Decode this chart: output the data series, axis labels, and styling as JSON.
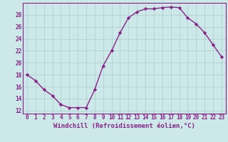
{
  "x": [
    0,
    1,
    2,
    3,
    4,
    5,
    6,
    7,
    8,
    9,
    10,
    11,
    12,
    13,
    14,
    15,
    16,
    17,
    18,
    19,
    20,
    21,
    22,
    23
  ],
  "y": [
    18,
    17,
    15.5,
    14.5,
    13,
    12.5,
    12.5,
    12.5,
    15.5,
    19.5,
    22,
    25,
    27.5,
    28.5,
    29,
    29,
    29.2,
    29.3,
    29.2,
    27.5,
    26.5,
    25,
    23,
    21
  ],
  "line_color": "#882288",
  "marker": "D",
  "marker_size": 2.2,
  "bg_color": "#cce8e8",
  "grid_color": "#aacece",
  "xlabel": "Windchill (Refroidissement éolien,°C)",
  "ylim": [
    11.5,
    30
  ],
  "xlim": [
    -0.5,
    23.5
  ],
  "yticks": [
    12,
    14,
    16,
    18,
    20,
    22,
    24,
    26,
    28
  ],
  "xticks": [
    0,
    1,
    2,
    3,
    4,
    5,
    6,
    7,
    8,
    9,
    10,
    11,
    12,
    13,
    14,
    15,
    16,
    17,
    18,
    19,
    20,
    21,
    22,
    23
  ],
  "tick_fontsize": 5.5,
  "xlabel_fontsize": 6.5,
  "linewidth": 1.0
}
